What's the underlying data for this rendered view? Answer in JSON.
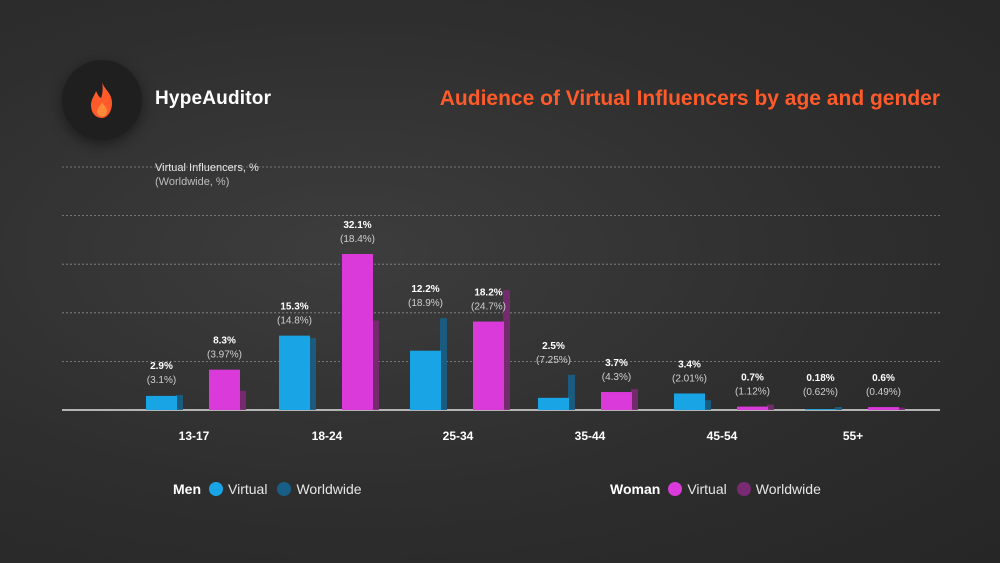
{
  "brand": {
    "name": "HypeAuditor",
    "icon": "flame-icon",
    "icon_color": "#ff5a2a"
  },
  "title": "Audience of Virtual Influencers by age and gender",
  "y_axis_title": {
    "line1": "Virtual Influencers, %",
    "line2": "(Worldwide, %)"
  },
  "legend": {
    "men": {
      "label": "Men",
      "items": [
        "Virtual",
        "Worldwide"
      ]
    },
    "women": {
      "label": "Woman",
      "items": [
        "Virtual",
        "Worldwide"
      ]
    }
  },
  "colors": {
    "men_virtual": "#19a4e6",
    "men_worldwide": "#175f86",
    "women_virtual": "#d93ad9",
    "women_worldwide": "#7a2a72",
    "title": "#ff5a2a"
  },
  "chart_data": {
    "type": "bar",
    "title": "Audience of Virtual Influencers by age and gender",
    "categories": [
      "13-17",
      "18-24",
      "25-34",
      "35-44",
      "45-54",
      "55+"
    ],
    "ylim": [
      0,
      50
    ],
    "grid": true,
    "legend_position": "bottom",
    "series": [
      {
        "name": "Men Virtual",
        "group": "Men",
        "kind": "Virtual",
        "values": [
          2.9,
          15.3,
          12.2,
          2.5,
          3.4,
          0.18
        ],
        "labels": [
          "2.9%",
          "15.3%",
          "12.2%",
          "2.5%",
          "3.4%",
          "0.18%"
        ]
      },
      {
        "name": "Men Worldwide",
        "group": "Men",
        "kind": "Worldwide",
        "values": [
          3.1,
          14.8,
          18.9,
          7.25,
          2.01,
          0.62
        ],
        "labels": [
          "(3.1%)",
          "(14.8%)",
          "(18.9%)",
          "(7.25%)",
          "(2.01%)",
          "(0.62%)"
        ]
      },
      {
        "name": "Woman Virtual",
        "group": "Woman",
        "kind": "Virtual",
        "values": [
          8.3,
          32.1,
          18.2,
          3.7,
          0.7,
          0.6
        ],
        "labels": [
          "8.3%",
          "32.1%",
          "18.2%",
          "3.7%",
          "0.7%",
          "0.6%"
        ]
      },
      {
        "name": "Woman Worldwide",
        "group": "Woman",
        "kind": "Worldwide",
        "values": [
          3.97,
          18.4,
          24.7,
          4.3,
          1.12,
          0.49
        ],
        "labels": [
          "(3.97%)",
          "(18.4%)",
          "(24.7%)",
          "(4.3%)",
          "(1.12%)",
          "(0.49%)"
        ]
      }
    ]
  }
}
